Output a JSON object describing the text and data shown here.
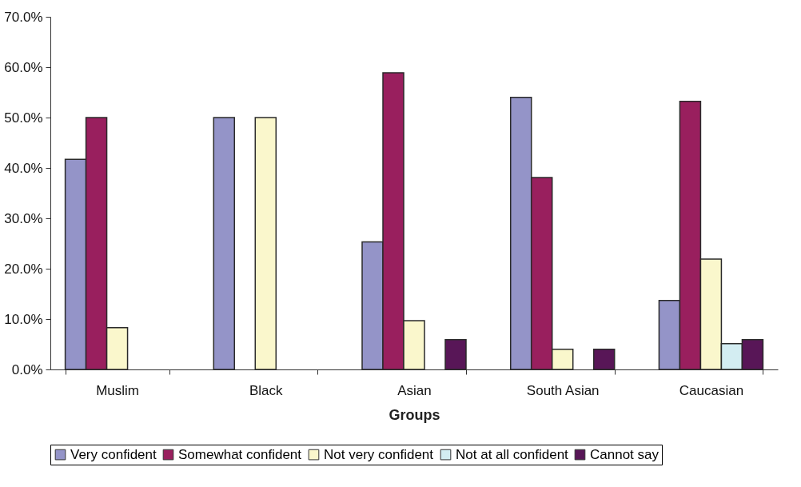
{
  "chart_data": {
    "type": "bar",
    "xlabel": "Groups",
    "categories": [
      "Muslim",
      "Black",
      "Asian",
      "South Asian",
      "Caucasian"
    ],
    "series": [
      {
        "name": "Very confident",
        "color": "#9494c8",
        "values": [
          41.7,
          50,
          25.3,
          54,
          13.7
        ]
      },
      {
        "name": "Somewhat confident",
        "color": "#991f5e",
        "values": [
          50,
          null,
          58.9,
          38.1,
          53.2
        ]
      },
      {
        "name": "Not very confident",
        "color": "#faf7cc",
        "values": [
          8.3,
          50,
          9.7,
          4,
          21.9
        ]
      },
      {
        "name": "Not at all confident",
        "color": "#d3edf2",
        "values": [
          null,
          null,
          null,
          null,
          5.1
        ]
      },
      {
        "name": "Cannot say",
        "color": "#581657",
        "values": [
          null,
          null,
          5.9,
          4,
          5.9
        ]
      }
    ],
    "ylim": [
      0,
      70
    ],
    "yticks": [
      {
        "value": 0,
        "label": "0.0%"
      },
      {
        "value": 10,
        "label": "10.0%"
      },
      {
        "value": 20,
        "label": "20.0%"
      },
      {
        "value": 30,
        "label": "30.0%"
      },
      {
        "value": 40,
        "label": "40.0%"
      },
      {
        "value": 50,
        "label": "50.0%"
      },
      {
        "value": 60,
        "label": "60.0%"
      },
      {
        "value": 70,
        "label": "70.0%"
      }
    ],
    "grid": false,
    "legend": "bottom"
  }
}
